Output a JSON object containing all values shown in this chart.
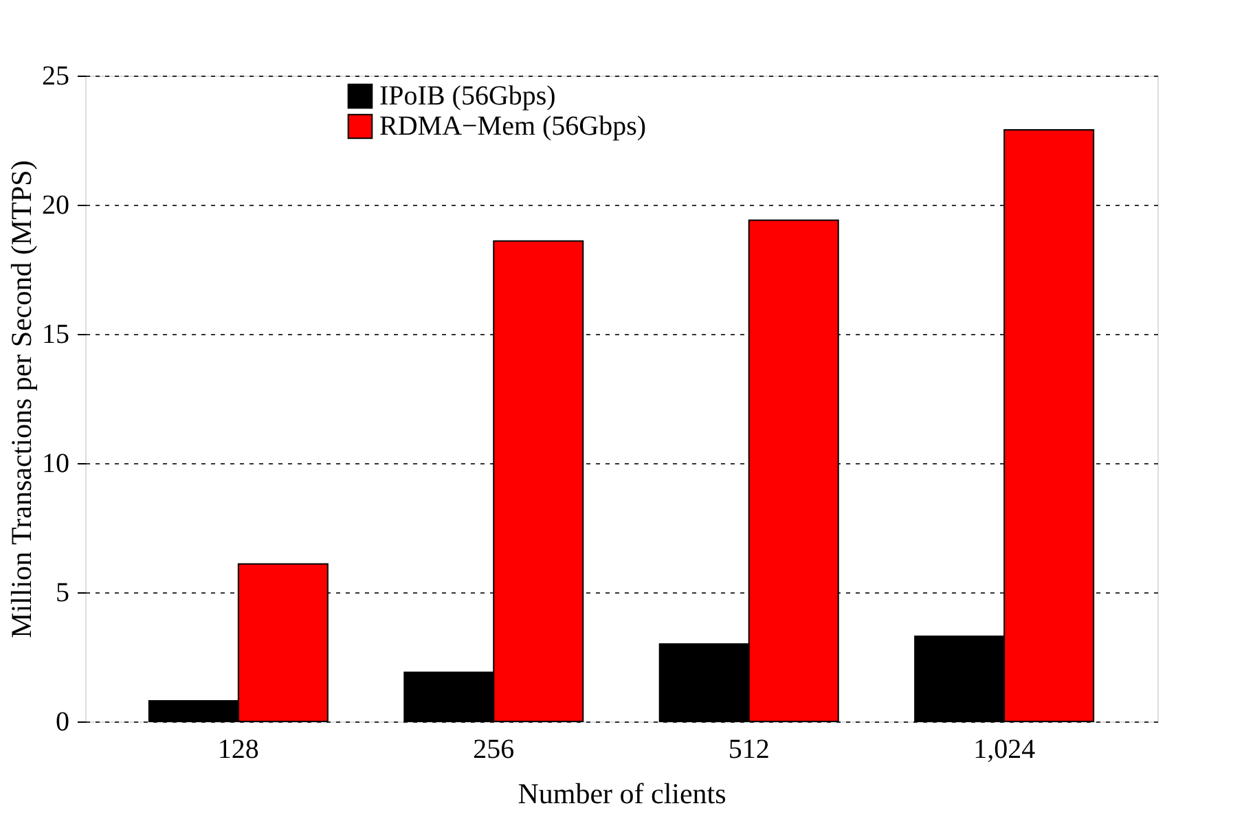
{
  "chart_data": {
    "type": "bar",
    "xlabel": "Number of clients",
    "ylabel": "Million Transactions per Second (MTPS)",
    "categories": [
      "128",
      "256",
      "512",
      "1,024"
    ],
    "series": [
      {
        "name": "IPoIB (56Gbps)",
        "color": "#000000",
        "values": [
          0.8,
          1.9,
          3.0,
          3.3
        ]
      },
      {
        "name": "RDMA−Mem (56Gbps)",
        "color": "#ff0000",
        "values": [
          6.1,
          18.6,
          19.4,
          22.9
        ]
      }
    ],
    "ylim": [
      0,
      25
    ],
    "yticks": [
      0,
      5,
      10,
      15,
      20,
      25
    ],
    "grid": "y",
    "legend": "top"
  }
}
